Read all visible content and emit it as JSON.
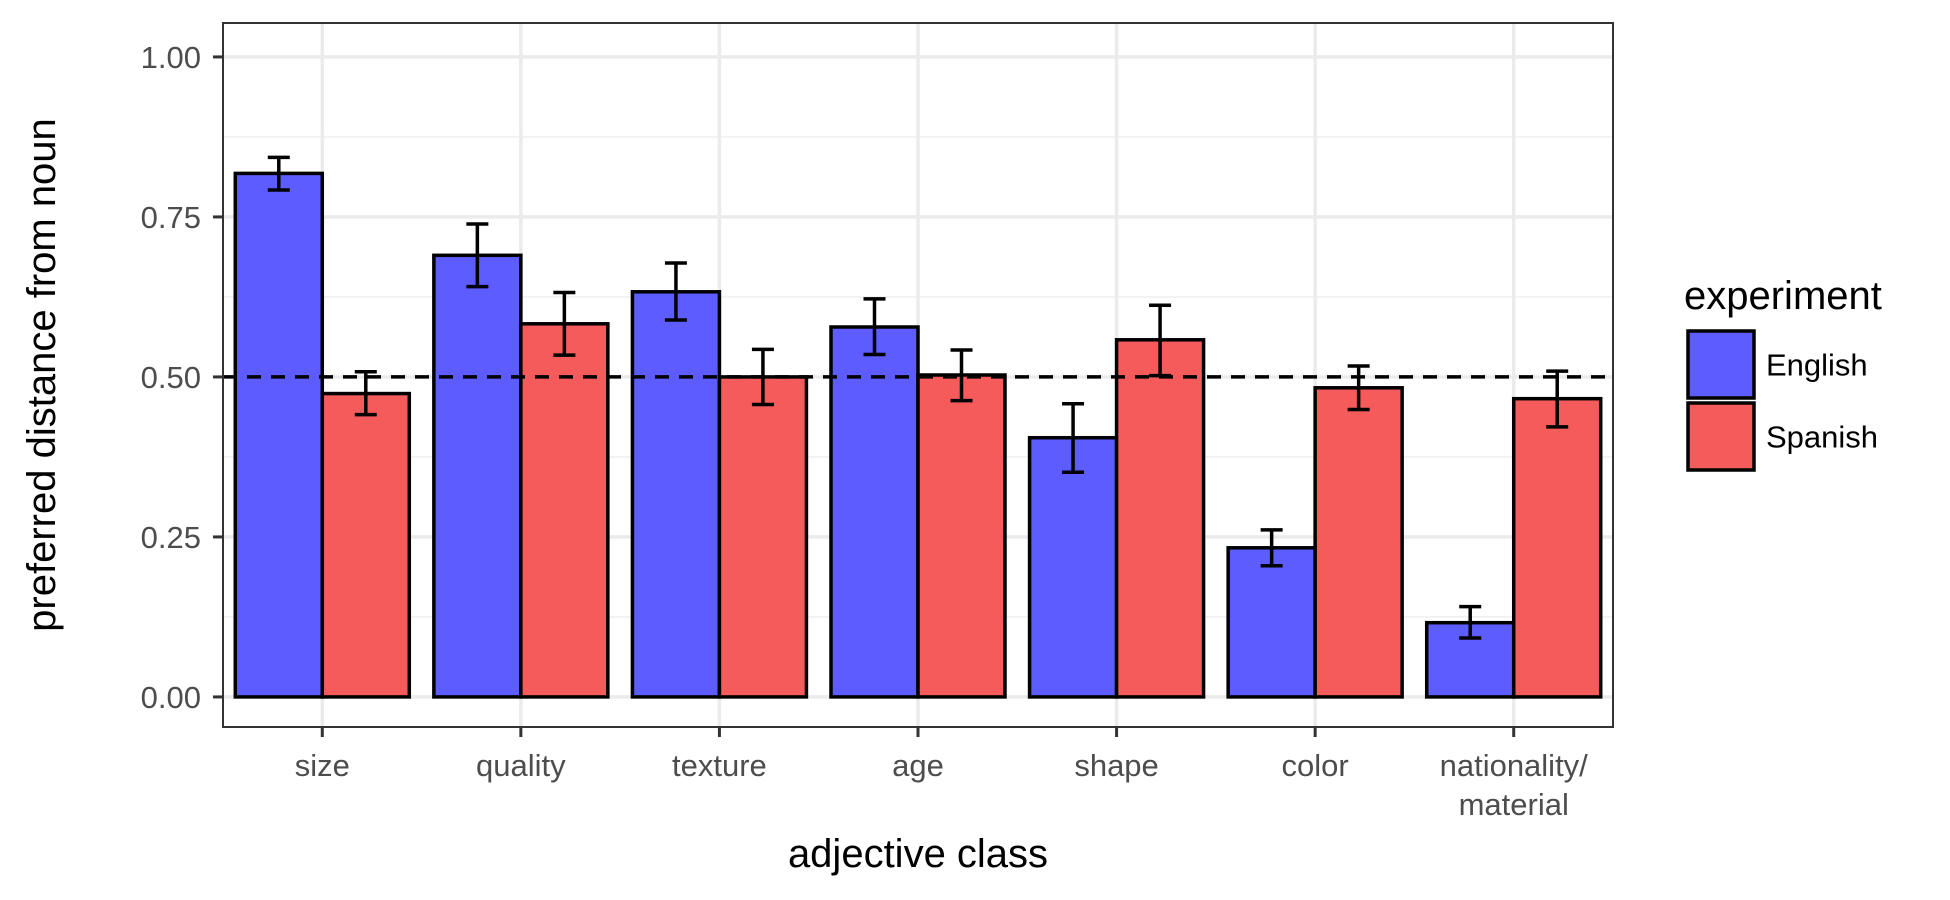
{
  "chart_data": {
    "type": "bar",
    "xlabel": "adjective class",
    "ylabel": "preferred distance from noun",
    "categories": [
      [
        "size"
      ],
      [
        "quality"
      ],
      [
        "texture"
      ],
      [
        "age"
      ],
      [
        "shape"
      ],
      [
        "color"
      ],
      [
        "nationality/",
        "material"
      ]
    ],
    "series": [
      {
        "name": "English",
        "color": "#5c5cff",
        "values": [
          0.818,
          0.69,
          0.633,
          0.578,
          0.405,
          0.233,
          0.116
        ],
        "error_low": [
          0.792,
          0.641,
          0.589,
          0.535,
          0.351,
          0.205,
          0.092
        ],
        "error_high": [
          0.843,
          0.739,
          0.678,
          0.622,
          0.458,
          0.261,
          0.141
        ]
      },
      {
        "name": "Spanish",
        "color": "#f55b5b",
        "values": [
          0.474,
          0.583,
          0.5,
          0.503,
          0.558,
          0.483,
          0.466
        ],
        "error_low": [
          0.441,
          0.534,
          0.457,
          0.463,
          0.502,
          0.449,
          0.422
        ],
        "error_high": [
          0.508,
          0.632,
          0.543,
          0.542,
          0.612,
          0.517,
          0.509
        ]
      }
    ],
    "ylim": [
      -0.047,
      1.053
    ],
    "yticks": [
      0.0,
      0.25,
      0.5,
      0.75,
      1.0
    ],
    "ytick_labels": [
      "0.00",
      "0.25",
      "0.50",
      "0.75",
      "1.00"
    ],
    "reference_line": {
      "y": 0.5,
      "style": "dashed"
    },
    "error_bars": true,
    "grid": true,
    "legend": {
      "title": "experiment",
      "position": "right",
      "entries": [
        "English",
        "Spanish"
      ]
    }
  }
}
